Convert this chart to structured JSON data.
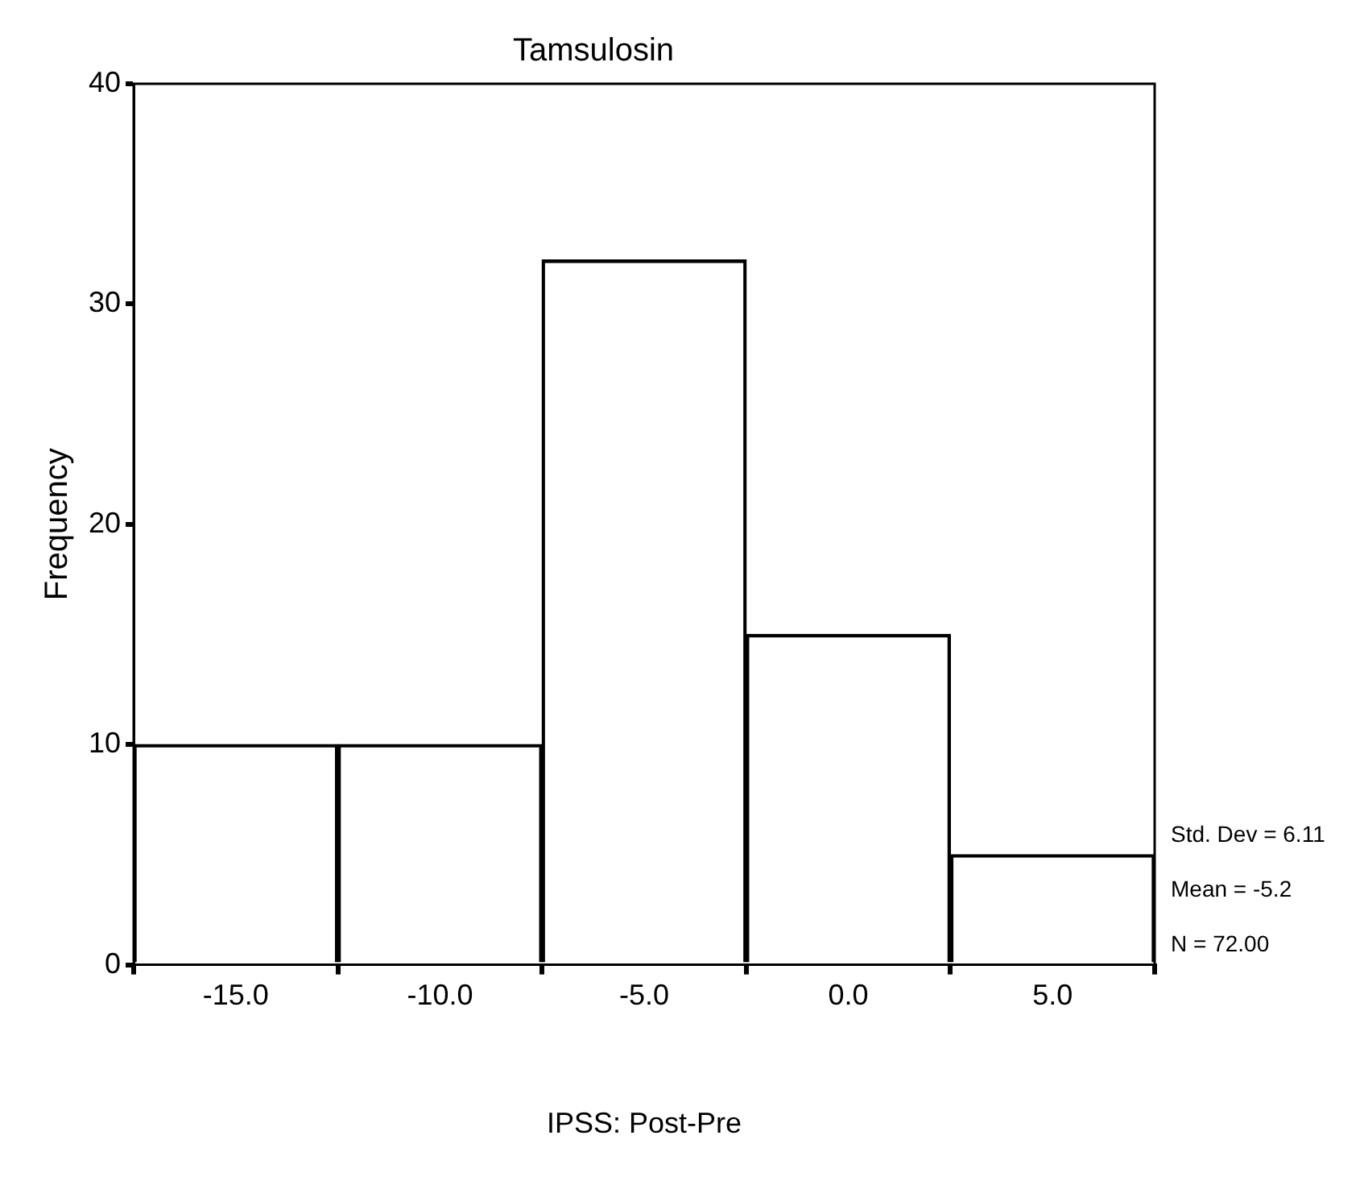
{
  "chart_data": {
    "type": "histogram",
    "title": "Tamsulosin",
    "xlabel": "IPSS: Post-Pre",
    "ylabel": "Frequency",
    "bins": [
      -17.5,
      -12.5,
      -7.5,
      -2.5,
      2.5,
      7.5
    ],
    "values": [
      10,
      10,
      32,
      15,
      5
    ],
    "color": "#000000",
    "xlim": [
      -17.5,
      7.5
    ],
    "xticks": [
      {
        "value": -15,
        "label": "-15.0"
      },
      {
        "value": -10,
        "label": "-10.0"
      },
      {
        "value": -5,
        "label": "-5.0"
      },
      {
        "value": 0,
        "label": "0.0"
      },
      {
        "value": 5,
        "label": "5.0"
      }
    ],
    "ylim": [
      0,
      40
    ],
    "yticks": [
      0,
      10,
      20,
      30,
      40
    ],
    "grid": false,
    "legend": false,
    "annotations": [
      "Std. Dev = 6.11",
      "Mean = -5.2",
      "N = 72.00"
    ]
  }
}
